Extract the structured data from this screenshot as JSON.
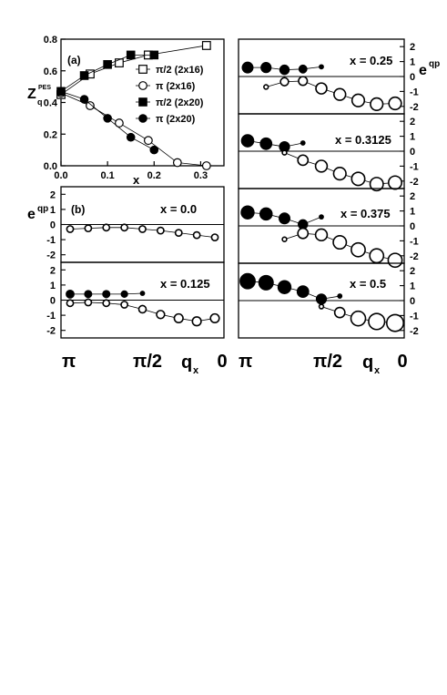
{
  "figure": {
    "panel_a_label": "(a)",
    "panel_b_label": "(b)",
    "y_label_main": "Z",
    "y_label_sub": "q",
    "y_label_sup": "PES",
    "x_label_a": "x",
    "eqp_main": "e",
    "eqp_sup": "qp",
    "qx_main": "q",
    "qx_sub": "x",
    "qx_ticks": [
      "π",
      "π/2",
      "0"
    ]
  },
  "chart_data": [
    {
      "type": "line",
      "panel": "(a)",
      "xlabel": "x",
      "ylabel": "Z_q^PES",
      "xlim": [
        0,
        0.35
      ],
      "ylim": [
        0,
        0.8
      ],
      "xticks": [
        0.0,
        0.1,
        0.2,
        0.3
      ],
      "xtick_labels": [
        "0.0",
        "0.1",
        "0.2",
        "0.3"
      ],
      "yticks": [
        0.0,
        0.2,
        0.4,
        0.6,
        0.8
      ],
      "ytick_labels": [
        "0.0",
        "0.2",
        "0.4",
        "0.6",
        "0.8"
      ],
      "legend_position": "right",
      "series": [
        {
          "name": "π/2 (2x16)",
          "marker": "open-square",
          "x": [
            0.0,
            0.0625,
            0.125,
            0.1875,
            0.3125
          ],
          "y": [
            0.45,
            0.58,
            0.65,
            0.7,
            0.76
          ]
        },
        {
          "name": "π (2x16)",
          "marker": "open-circle",
          "x": [
            0.0,
            0.0625,
            0.125,
            0.1875,
            0.25,
            0.3125
          ],
          "y": [
            0.46,
            0.38,
            0.27,
            0.16,
            0.02,
            0.0
          ]
        },
        {
          "name": "π/2 (2x20)",
          "marker": "filled-square",
          "x": [
            0.0,
            0.05,
            0.1,
            0.15,
            0.2
          ],
          "y": [
            0.47,
            0.57,
            0.64,
            0.7,
            0.7
          ]
        },
        {
          "name": "π (2x20)",
          "marker": "filled-circle",
          "x": [
            0.0,
            0.05,
            0.1,
            0.15,
            0.2
          ],
          "y": [
            0.47,
            0.42,
            0.3,
            0.18,
            0.1
          ]
        }
      ]
    },
    {
      "type": "scatter",
      "panel": "(b)",
      "label": "x = 0.0",
      "xlabel": "q_x",
      "ylabel": "e^qp",
      "xlim": [
        0,
        1
      ],
      "ylim": [
        -2.5,
        2.5
      ],
      "yticks": [
        -2,
        -1,
        0,
        1,
        2
      ],
      "ytick_labels": [
        "-2",
        "-1",
        "0",
        "1",
        "2"
      ],
      "xtick_labels": [
        "π",
        "π/2",
        "0"
      ],
      "series": [
        {
          "name": "",
          "style": "open",
          "x": [
            0.0,
            0.125,
            0.25,
            0.375,
            0.5,
            0.625,
            0.75,
            0.875,
            1.0
          ],
          "y": [
            -0.3,
            -0.25,
            -0.2,
            -0.2,
            -0.3,
            -0.4,
            -0.55,
            -0.7,
            -0.85
          ],
          "weight": [
            0.2,
            0.2,
            0.2,
            0.2,
            0.2,
            0.2,
            0.2,
            0.2,
            0.2
          ]
        }
      ]
    },
    {
      "type": "scatter",
      "panel": "(b)",
      "label": "x = 0.125",
      "xlabel": "q_x",
      "ylabel": "e^qp",
      "xlim": [
        0,
        1
      ],
      "ylim": [
        -2.5,
        2.5
      ],
      "yticks": [
        -2,
        -1,
        0,
        1,
        2
      ],
      "ytick_labels": [
        "-2",
        "-1",
        "0",
        "1",
        "2"
      ],
      "xtick_labels": [
        "π",
        "π/2",
        "0"
      ],
      "series": [
        {
          "name": "",
          "style": "filled",
          "x": [
            0.0,
            0.125,
            0.25,
            0.375,
            0.5
          ],
          "y": [
            0.4,
            0.4,
            0.4,
            0.4,
            0.45
          ],
          "weight": [
            0.3,
            0.25,
            0.25,
            0.2,
            0.05
          ]
        },
        {
          "name": "",
          "style": "open",
          "x": [
            0.0,
            0.125,
            0.25,
            0.375,
            0.5,
            0.625,
            0.75,
            0.875,
            1.0
          ],
          "y": [
            -0.2,
            -0.15,
            -0.2,
            -0.3,
            -0.6,
            -0.95,
            -1.2,
            -1.4,
            -1.2
          ],
          "weight": [
            0.2,
            0.2,
            0.2,
            0.2,
            0.25,
            0.3,
            0.35,
            0.35,
            0.35
          ]
        }
      ]
    },
    {
      "type": "scatter",
      "panel": "(b)",
      "label": "x = 0.25",
      "xlabel": "q_x",
      "ylabel": "e^qp",
      "xlim": [
        0,
        1
      ],
      "ylim": [
        -2.5,
        2.5
      ],
      "yticks": [
        -2,
        -1,
        0,
        1,
        2
      ],
      "ytick_labels": [
        "-2",
        "-1",
        "0",
        "1",
        "2"
      ],
      "xtick_labels": [
        "π",
        "π/2",
        "0"
      ],
      "series": [
        {
          "name": "",
          "style": "filled",
          "x": [
            0.0,
            0.125,
            0.25,
            0.375,
            0.5
          ],
          "y": [
            0.6,
            0.6,
            0.45,
            0.5,
            0.65
          ],
          "weight": [
            0.5,
            0.45,
            0.4,
            0.3,
            0.05
          ]
        },
        {
          "name": "",
          "style": "open",
          "x": [
            0.125,
            0.25,
            0.375,
            0.5,
            0.625,
            0.75,
            0.875,
            1.0
          ],
          "y": [
            -0.7,
            -0.35,
            -0.3,
            -0.8,
            -1.2,
            -1.6,
            -1.85,
            -1.8
          ],
          "weight": [
            0.05,
            0.3,
            0.35,
            0.5,
            0.55,
            0.6,
            0.6,
            0.6
          ]
        }
      ]
    },
    {
      "type": "scatter",
      "panel": "(b)",
      "label": "x = 0.3125",
      "xlabel": "q_x",
      "ylabel": "e^qp",
      "xlim": [
        0,
        1
      ],
      "ylim": [
        -2.5,
        2.5
      ],
      "yticks": [
        -2,
        -1,
        0,
        1,
        2
      ],
      "ytick_labels": [
        "-2",
        "-1",
        "0",
        "1",
        "2"
      ],
      "xtick_labels": [
        "π",
        "π/2",
        "0"
      ],
      "series": [
        {
          "name": "",
          "style": "filled",
          "x": [
            0.0,
            0.125,
            0.25,
            0.375
          ],
          "y": [
            0.7,
            0.5,
            0.3,
            0.55
          ],
          "weight": [
            0.6,
            0.55,
            0.45,
            0.05
          ]
        },
        {
          "name": "",
          "style": "open",
          "x": [
            0.25,
            0.375,
            0.5,
            0.625,
            0.75,
            0.875,
            1.0
          ],
          "y": [
            -0.1,
            -0.6,
            -1.0,
            -1.5,
            -1.85,
            -2.2,
            -2.1
          ],
          "weight": [
            0.05,
            0.45,
            0.55,
            0.6,
            0.65,
            0.65,
            0.65
          ]
        }
      ]
    },
    {
      "type": "scatter",
      "panel": "(b)",
      "label": "x = 0.375",
      "xlabel": "q_x",
      "ylabel": "e^qp",
      "xlim": [
        0,
        1
      ],
      "ylim": [
        -2.5,
        2.5
      ],
      "yticks": [
        -2,
        -1,
        0,
        1,
        2
      ],
      "ytick_labels": [
        "-2",
        "-1",
        "0",
        "1",
        "2"
      ],
      "xtick_labels": [
        "π",
        "π/2",
        "0"
      ],
      "series": [
        {
          "name": "",
          "style": "filled",
          "x": [
            0.0,
            0.125,
            0.25,
            0.375,
            0.5
          ],
          "y": [
            0.9,
            0.8,
            0.5,
            0.1,
            0.6
          ],
          "weight": [
            0.65,
            0.6,
            0.5,
            0.4,
            0.05
          ]
        },
        {
          "name": "",
          "style": "open",
          "x": [
            0.25,
            0.375,
            0.5,
            0.625,
            0.75,
            0.875,
            1.0
          ],
          "y": [
            -0.9,
            -0.5,
            -0.6,
            -1.1,
            -1.6,
            -2.0,
            -2.3
          ],
          "weight": [
            0.05,
            0.45,
            0.55,
            0.65,
            0.7,
            0.7,
            0.7
          ]
        }
      ]
    },
    {
      "type": "scatter",
      "panel": "(b)",
      "label": "x = 0.5",
      "xlabel": "q_x",
      "ylabel": "e^qp",
      "xlim": [
        0,
        1
      ],
      "ylim": [
        -2.5,
        2.5
      ],
      "yticks": [
        -2,
        -1,
        0,
        1,
        2
      ],
      "ytick_labels": [
        "-2",
        "-1",
        "0",
        "1",
        "2"
      ],
      "xtick_labels": [
        "π",
        "π/2",
        "0"
      ],
      "series": [
        {
          "name": "",
          "style": "filled",
          "x": [
            0.0,
            0.125,
            0.25,
            0.375,
            0.5,
            0.625
          ],
          "y": [
            1.3,
            1.2,
            0.9,
            0.6,
            0.1,
            0.3
          ],
          "weight": [
            0.8,
            0.75,
            0.65,
            0.55,
            0.45,
            0.05
          ]
        },
        {
          "name": "",
          "style": "open",
          "x": [
            0.5,
            0.625,
            0.75,
            0.875,
            1.0
          ],
          "y": [
            -0.4,
            -0.8,
            -1.2,
            -1.4,
            -1.5
          ],
          "weight": [
            0.05,
            0.45,
            0.75,
            0.85,
            0.9
          ]
        }
      ]
    }
  ]
}
